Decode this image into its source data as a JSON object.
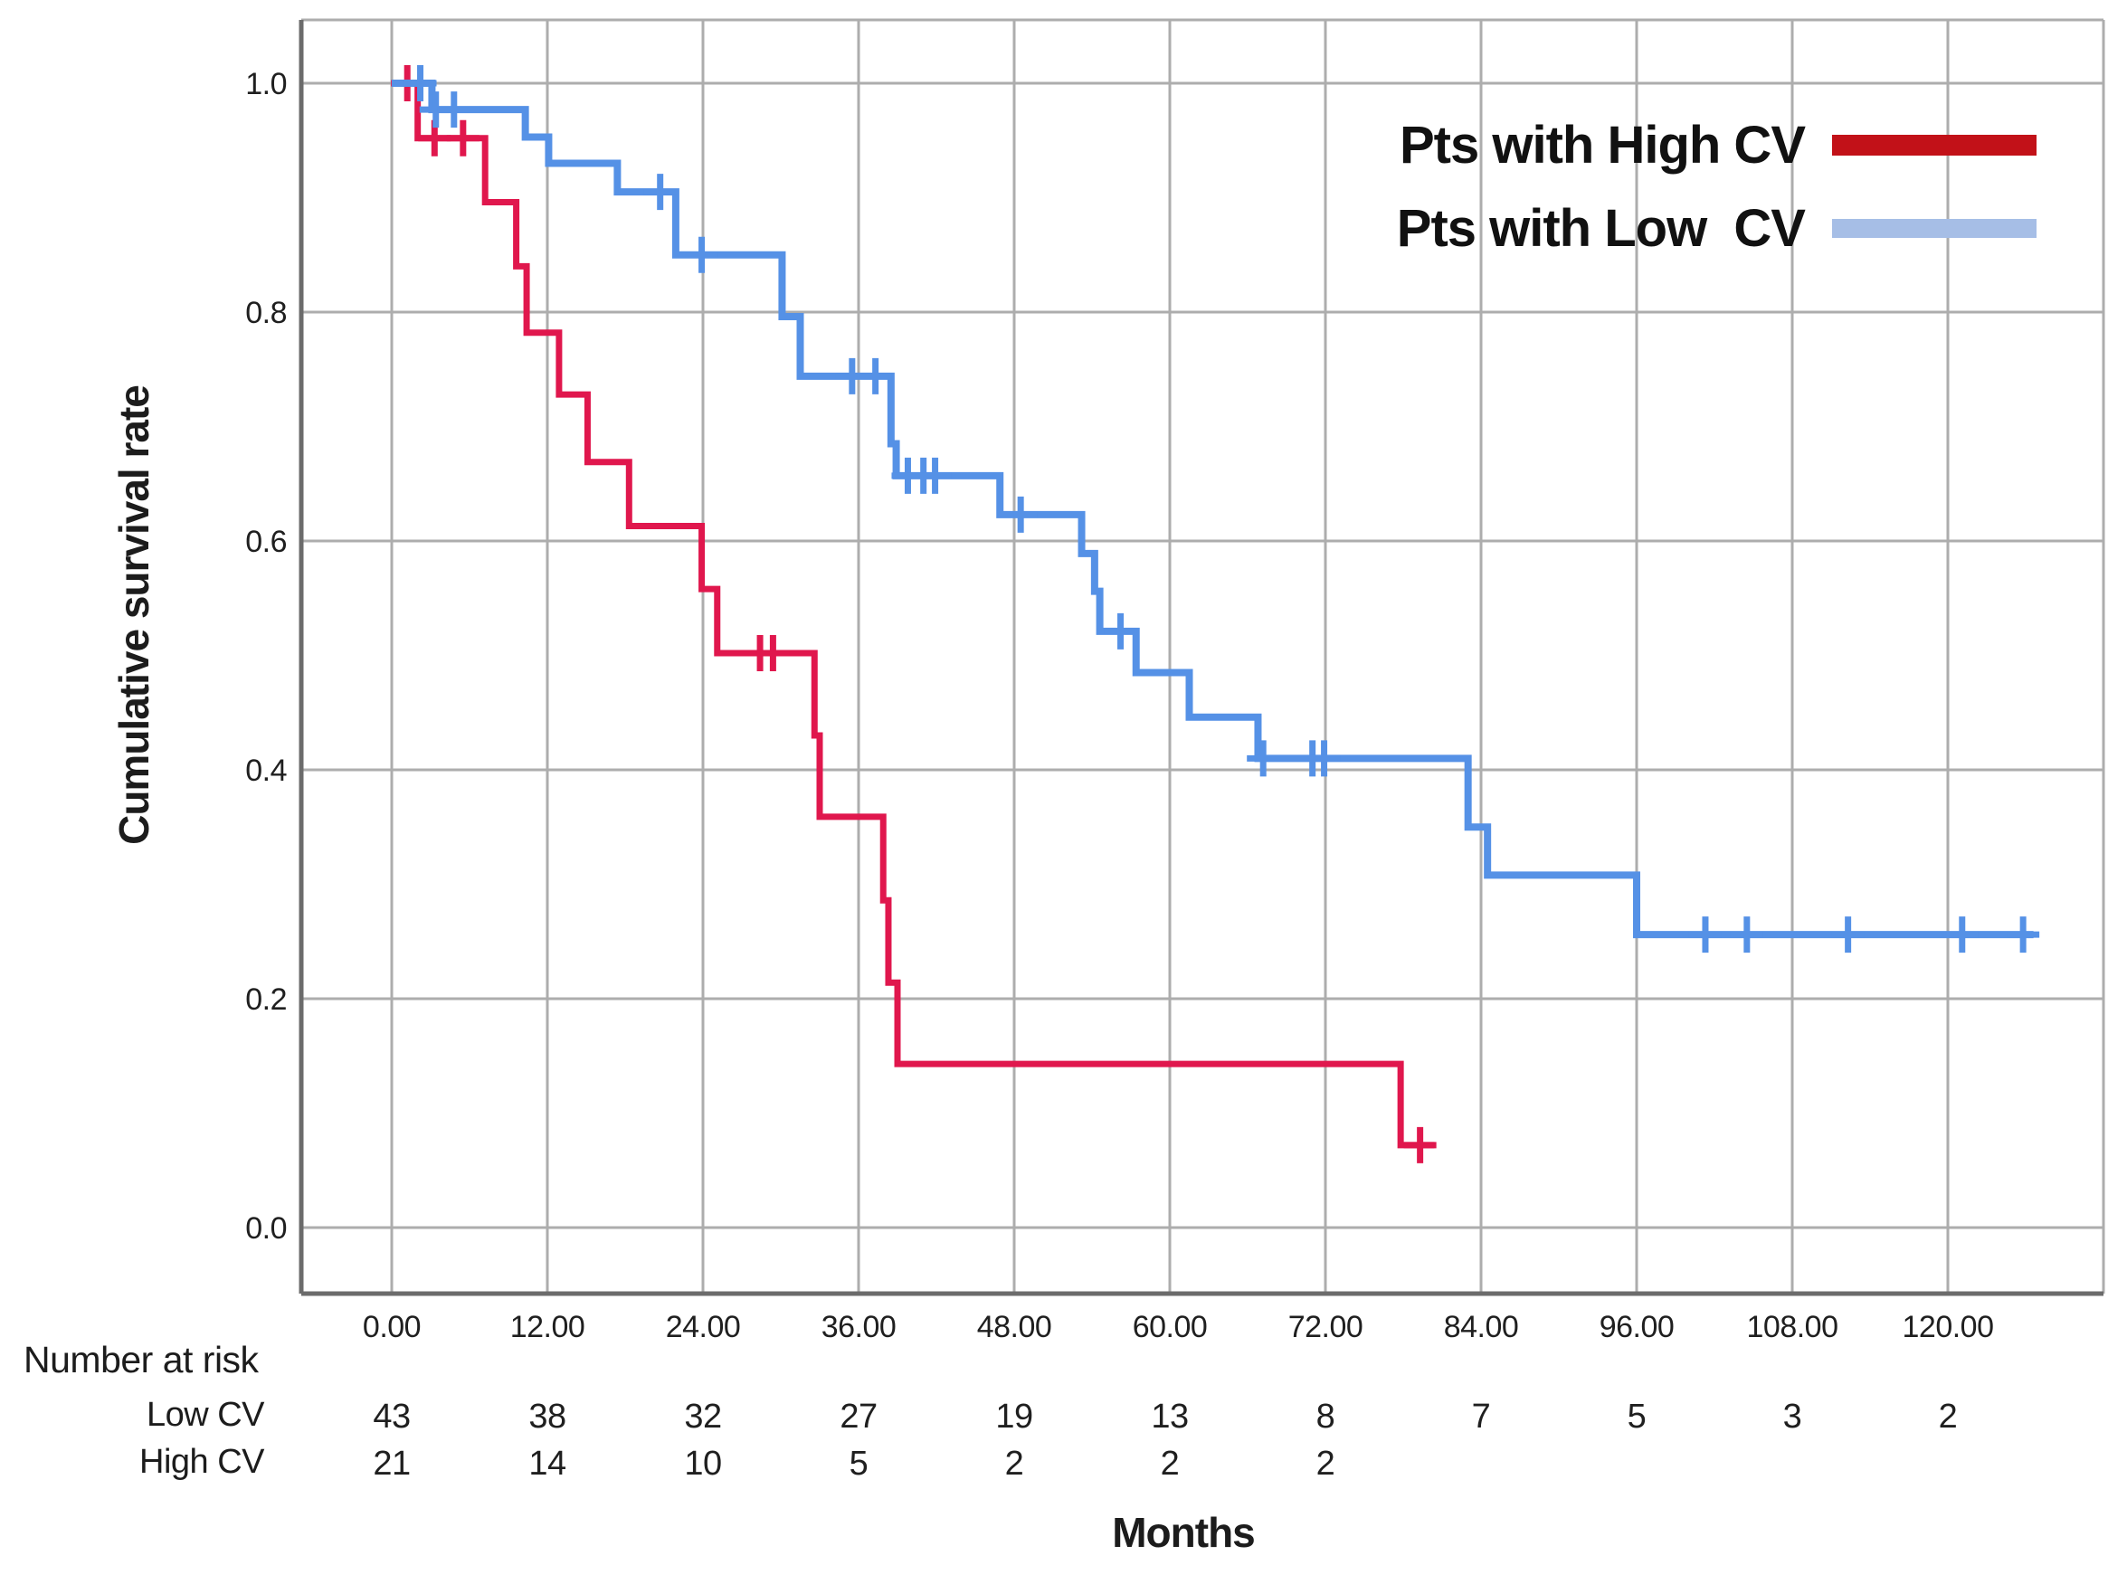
{
  "chart_data": {
    "type": "line",
    "subtype": "kaplan-meier-step-curve",
    "title": "",
    "xlabel": "Months",
    "ylabel": "Cumulative survival rate",
    "xlim": [
      -7,
      132
    ],
    "ylim": [
      -0.055,
      1.055
    ],
    "grid": true,
    "legend_position": "top-right-inside",
    "x_ticks": [
      {
        "m": 0,
        "label": "0.00"
      },
      {
        "m": 12,
        "label": "12.00"
      },
      {
        "m": 24,
        "label": "24.00"
      },
      {
        "m": 36,
        "label": "36.00"
      },
      {
        "m": 48,
        "label": "48.00"
      },
      {
        "m": 60,
        "label": "60.00"
      },
      {
        "m": 72,
        "label": "72.00"
      },
      {
        "m": 84,
        "label": "84.00"
      },
      {
        "m": 96,
        "label": "96.00"
      },
      {
        "m": 108,
        "label": "108.00"
      },
      {
        "m": 120,
        "label": "120.00"
      }
    ],
    "y_ticks": [
      {
        "v": 1.0,
        "label": "1.0"
      },
      {
        "v": 0.8,
        "label": "0.8"
      },
      {
        "v": 0.6,
        "label": "0.6"
      },
      {
        "v": 0.4,
        "label": "0.4"
      },
      {
        "v": 0.2,
        "label": "0.2"
      },
      {
        "v": 0.0,
        "label": "0.0"
      }
    ],
    "series": [
      {
        "name": "Pts with High CV",
        "group": "High CV",
        "color": "#E0174D",
        "legend_color": "#C21118",
        "stroke_width": 7,
        "steps": [
          [
            0,
            1.0
          ],
          [
            2.0,
            0.952
          ],
          [
            7.2,
            0.896
          ],
          [
            9.6,
            0.84
          ],
          [
            10.4,
            0.782
          ],
          [
            12.9,
            0.728
          ],
          [
            15.1,
            0.669
          ],
          [
            18.3,
            0.613
          ],
          [
            23.9,
            0.558
          ],
          [
            25.1,
            0.502
          ],
          [
            32.6,
            0.43
          ],
          [
            33.0,
            0.359
          ],
          [
            37.9,
            0.286
          ],
          [
            38.3,
            0.214
          ],
          [
            39.0,
            0.143
          ],
          [
            77.8,
            0.072
          ]
        ],
        "end_month": 80.4,
        "censors": [
          [
            1.2,
            1.0
          ],
          [
            3.3,
            0.952
          ],
          [
            5.5,
            0.952
          ],
          [
            28.4,
            0.502
          ],
          [
            29.4,
            0.502
          ],
          [
            79.3,
            0.072
          ]
        ]
      },
      {
        "name": "Pts with Low  CV",
        "group": "Low CV",
        "color": "#5591E6",
        "legend_color": "#A6BEE6",
        "stroke_width": 8,
        "steps": [
          [
            0,
            1.0
          ],
          [
            3.1,
            0.977
          ],
          [
            10.3,
            0.953
          ],
          [
            12.1,
            0.93
          ],
          [
            17.4,
            0.905
          ],
          [
            21.9,
            0.85
          ],
          [
            30.1,
            0.796
          ],
          [
            31.5,
            0.744
          ],
          [
            38.5,
            0.685
          ],
          [
            38.9,
            0.657
          ],
          [
            46.9,
            0.623
          ],
          [
            53.2,
            0.589
          ],
          [
            54.2,
            0.556
          ],
          [
            54.6,
            0.521
          ],
          [
            57.4,
            0.485
          ],
          [
            61.5,
            0.446
          ],
          [
            66.8,
            0.41
          ],
          [
            83.0,
            0.35
          ],
          [
            84.5,
            0.308
          ],
          [
            96.0,
            0.256
          ]
        ],
        "end_month": 126.6,
        "censors": [
          [
            2.2,
            1.0
          ],
          [
            3.4,
            0.977
          ],
          [
            4.8,
            0.977
          ],
          [
            20.7,
            0.905
          ],
          [
            23.9,
            0.85
          ],
          [
            35.5,
            0.744
          ],
          [
            37.3,
            0.744
          ],
          [
            39.8,
            0.657
          ],
          [
            41.0,
            0.657
          ],
          [
            41.9,
            0.657
          ],
          [
            48.5,
            0.623
          ],
          [
            56.2,
            0.521
          ],
          [
            67.2,
            0.41
          ],
          [
            71.0,
            0.41
          ],
          [
            71.9,
            0.41
          ],
          [
            101.3,
            0.256
          ],
          [
            104.5,
            0.256
          ],
          [
            112.3,
            0.256
          ],
          [
            121.1,
            0.256
          ],
          [
            125.8,
            0.256
          ]
        ]
      }
    ],
    "at_risk": {
      "title": "Number at risk",
      "rows": [
        {
          "label": "Low CV",
          "entries": [
            {
              "m": 0,
              "n": "43"
            },
            {
              "m": 12,
              "n": "38"
            },
            {
              "m": 24,
              "n": "32"
            },
            {
              "m": 36,
              "n": "27"
            },
            {
              "m": 48,
              "n": "19"
            },
            {
              "m": 60,
              "n": "13"
            },
            {
              "m": 72,
              "n": "8"
            },
            {
              "m": 84,
              "n": "7"
            },
            {
              "m": 96,
              "n": "5"
            },
            {
              "m": 108,
              "n": "3"
            },
            {
              "m": 120,
              "n": "2"
            }
          ]
        },
        {
          "label": "High CV",
          "entries": [
            {
              "m": 0,
              "n": "21"
            },
            {
              "m": 12,
              "n": "14"
            },
            {
              "m": 24,
              "n": "10"
            },
            {
              "m": 36,
              "n": "5"
            },
            {
              "m": 48,
              "n": "2"
            },
            {
              "m": 60,
              "n": "2"
            },
            {
              "m": 72,
              "n": "2"
            }
          ]
        }
      ]
    },
    "colors": {
      "grid": "#ADADAD",
      "axis": "#6B6B6B",
      "text": "#1C1C1C",
      "background": "#FFFFFF"
    }
  }
}
